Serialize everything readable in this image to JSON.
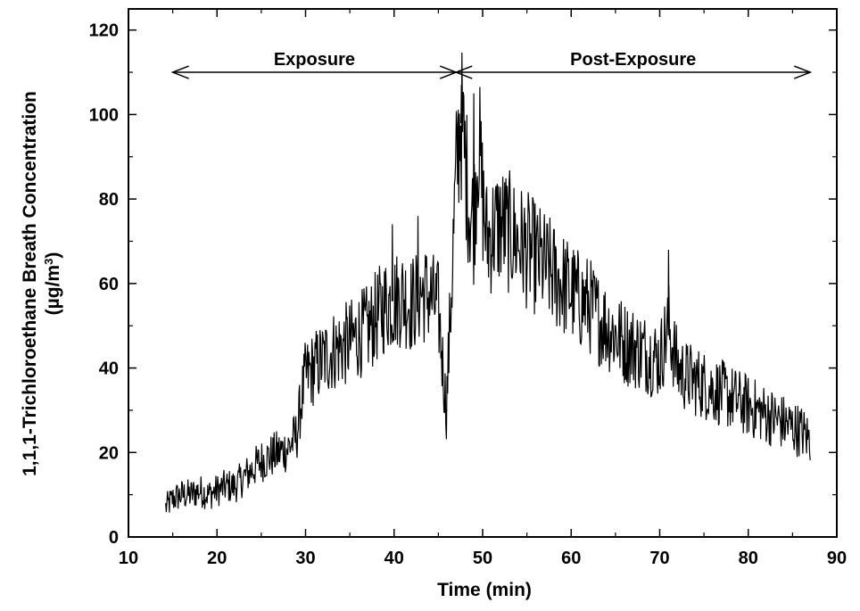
{
  "chart_data": {
    "type": "line",
    "title": "",
    "xlabel": "Time (min)",
    "ylabel": "1,1,1-Trichloroethane Breath Concentration",
    "ylabel_unit_prefix": "(µg/m",
    "ylabel_unit_sup": "3",
    "ylabel_unit_suffix": ")",
    "xlim": [
      10,
      90
    ],
    "ylim": [
      0,
      125
    ],
    "xticks": [
      10,
      20,
      30,
      40,
      50,
      60,
      70,
      80,
      90
    ],
    "yticks": [
      0,
      20,
      40,
      60,
      80,
      100,
      120
    ],
    "grid": false,
    "annotations": [
      {
        "label": "Exposure",
        "x_start": 15,
        "x_end": 47,
        "y": 110
      },
      {
        "label": "Post-Exposure",
        "x_start": 47,
        "x_end": 87,
        "y": 110
      }
    ],
    "series": [
      {
        "x": [
          14.2,
          15.0,
          16.0,
          17.0,
          18.0,
          19.0,
          20.0,
          21.0,
          22.0,
          23.0,
          24.0,
          25.0,
          26.0,
          27.0,
          28.0,
          29.0,
          29.5,
          30.0,
          31.0,
          32.0,
          33.0,
          34.0,
          35.0,
          36.0,
          37.0,
          38.0,
          39.0,
          40.0,
          41.0,
          42.0,
          43.0,
          44.0,
          45.0,
          45.9,
          46.5,
          47.0,
          47.5,
          48.0,
          48.5,
          49.0,
          49.5,
          50.0,
          50.5,
          51.0,
          52.0,
          53.0,
          54.0,
          55.0,
          56.0,
          57.0,
          58.0,
          59.0,
          60.0,
          61.0,
          62.0,
          63.0,
          64.0,
          65.0,
          66.0,
          67.0,
          68.0,
          69.0,
          70.0,
          71.0,
          72.0,
          73.0,
          74.0,
          75.0,
          76.0,
          77.0,
          78.0,
          79.0,
          80.0,
          81.0,
          82.0,
          83.0,
          84.0,
          85.0,
          86.0,
          87.0
        ],
        "y": [
          7,
          9,
          10,
          10,
          11,
          10,
          11,
          12,
          12,
          14,
          16,
          18,
          19,
          20,
          21,
          24,
          32,
          38,
          40,
          42,
          44,
          45,
          46,
          48,
          49,
          52,
          55,
          56,
          57,
          55,
          58,
          57,
          54,
          30,
          60,
          85,
          100,
          90,
          78,
          75,
          95,
          80,
          70,
          72,
          74,
          72,
          70,
          68,
          66,
          64,
          62,
          60,
          58,
          56,
          55,
          52,
          50,
          48,
          46,
          45,
          44,
          43,
          42,
          50,
          40,
          38,
          37,
          36,
          35,
          34,
          33,
          32,
          31,
          30,
          29,
          28,
          27,
          26,
          25,
          23
        ]
      }
    ]
  }
}
